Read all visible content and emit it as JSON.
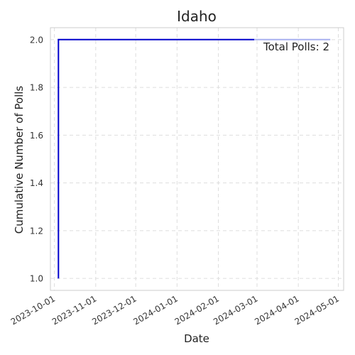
{
  "chart_data": {
    "type": "line",
    "title": "Idaho",
    "xlabel": "Date",
    "ylabel": "Cumulative Number of Polls",
    "annotation": "Total Polls: 2",
    "x_ticks": [
      "2023-10-01",
      "2023-11-01",
      "2023-12-01",
      "2024-01-01",
      "2024-02-01",
      "2024-03-01",
      "2024-04-01",
      "2024-05-01"
    ],
    "y_ticks": [
      "1.0",
      "1.2",
      "1.4",
      "1.6",
      "1.8",
      "2.0"
    ],
    "xlim": [
      "2023-09-28",
      "2024-05-05"
    ],
    "ylim": [
      0.95,
      2.05
    ],
    "grid": true,
    "series": [
      {
        "color": "#0000cc",
        "points": [
          {
            "x": "2023-10-04",
            "y": 1
          },
          {
            "x": "2023-10-04",
            "y": 2
          },
          {
            "x": "2024-02-28",
            "y": 2
          }
        ]
      },
      {
        "color": "#a8b0f0",
        "points": [
          {
            "x": "2024-02-28",
            "y": 2
          },
          {
            "x": "2024-04-25",
            "y": 2
          }
        ]
      }
    ]
  }
}
